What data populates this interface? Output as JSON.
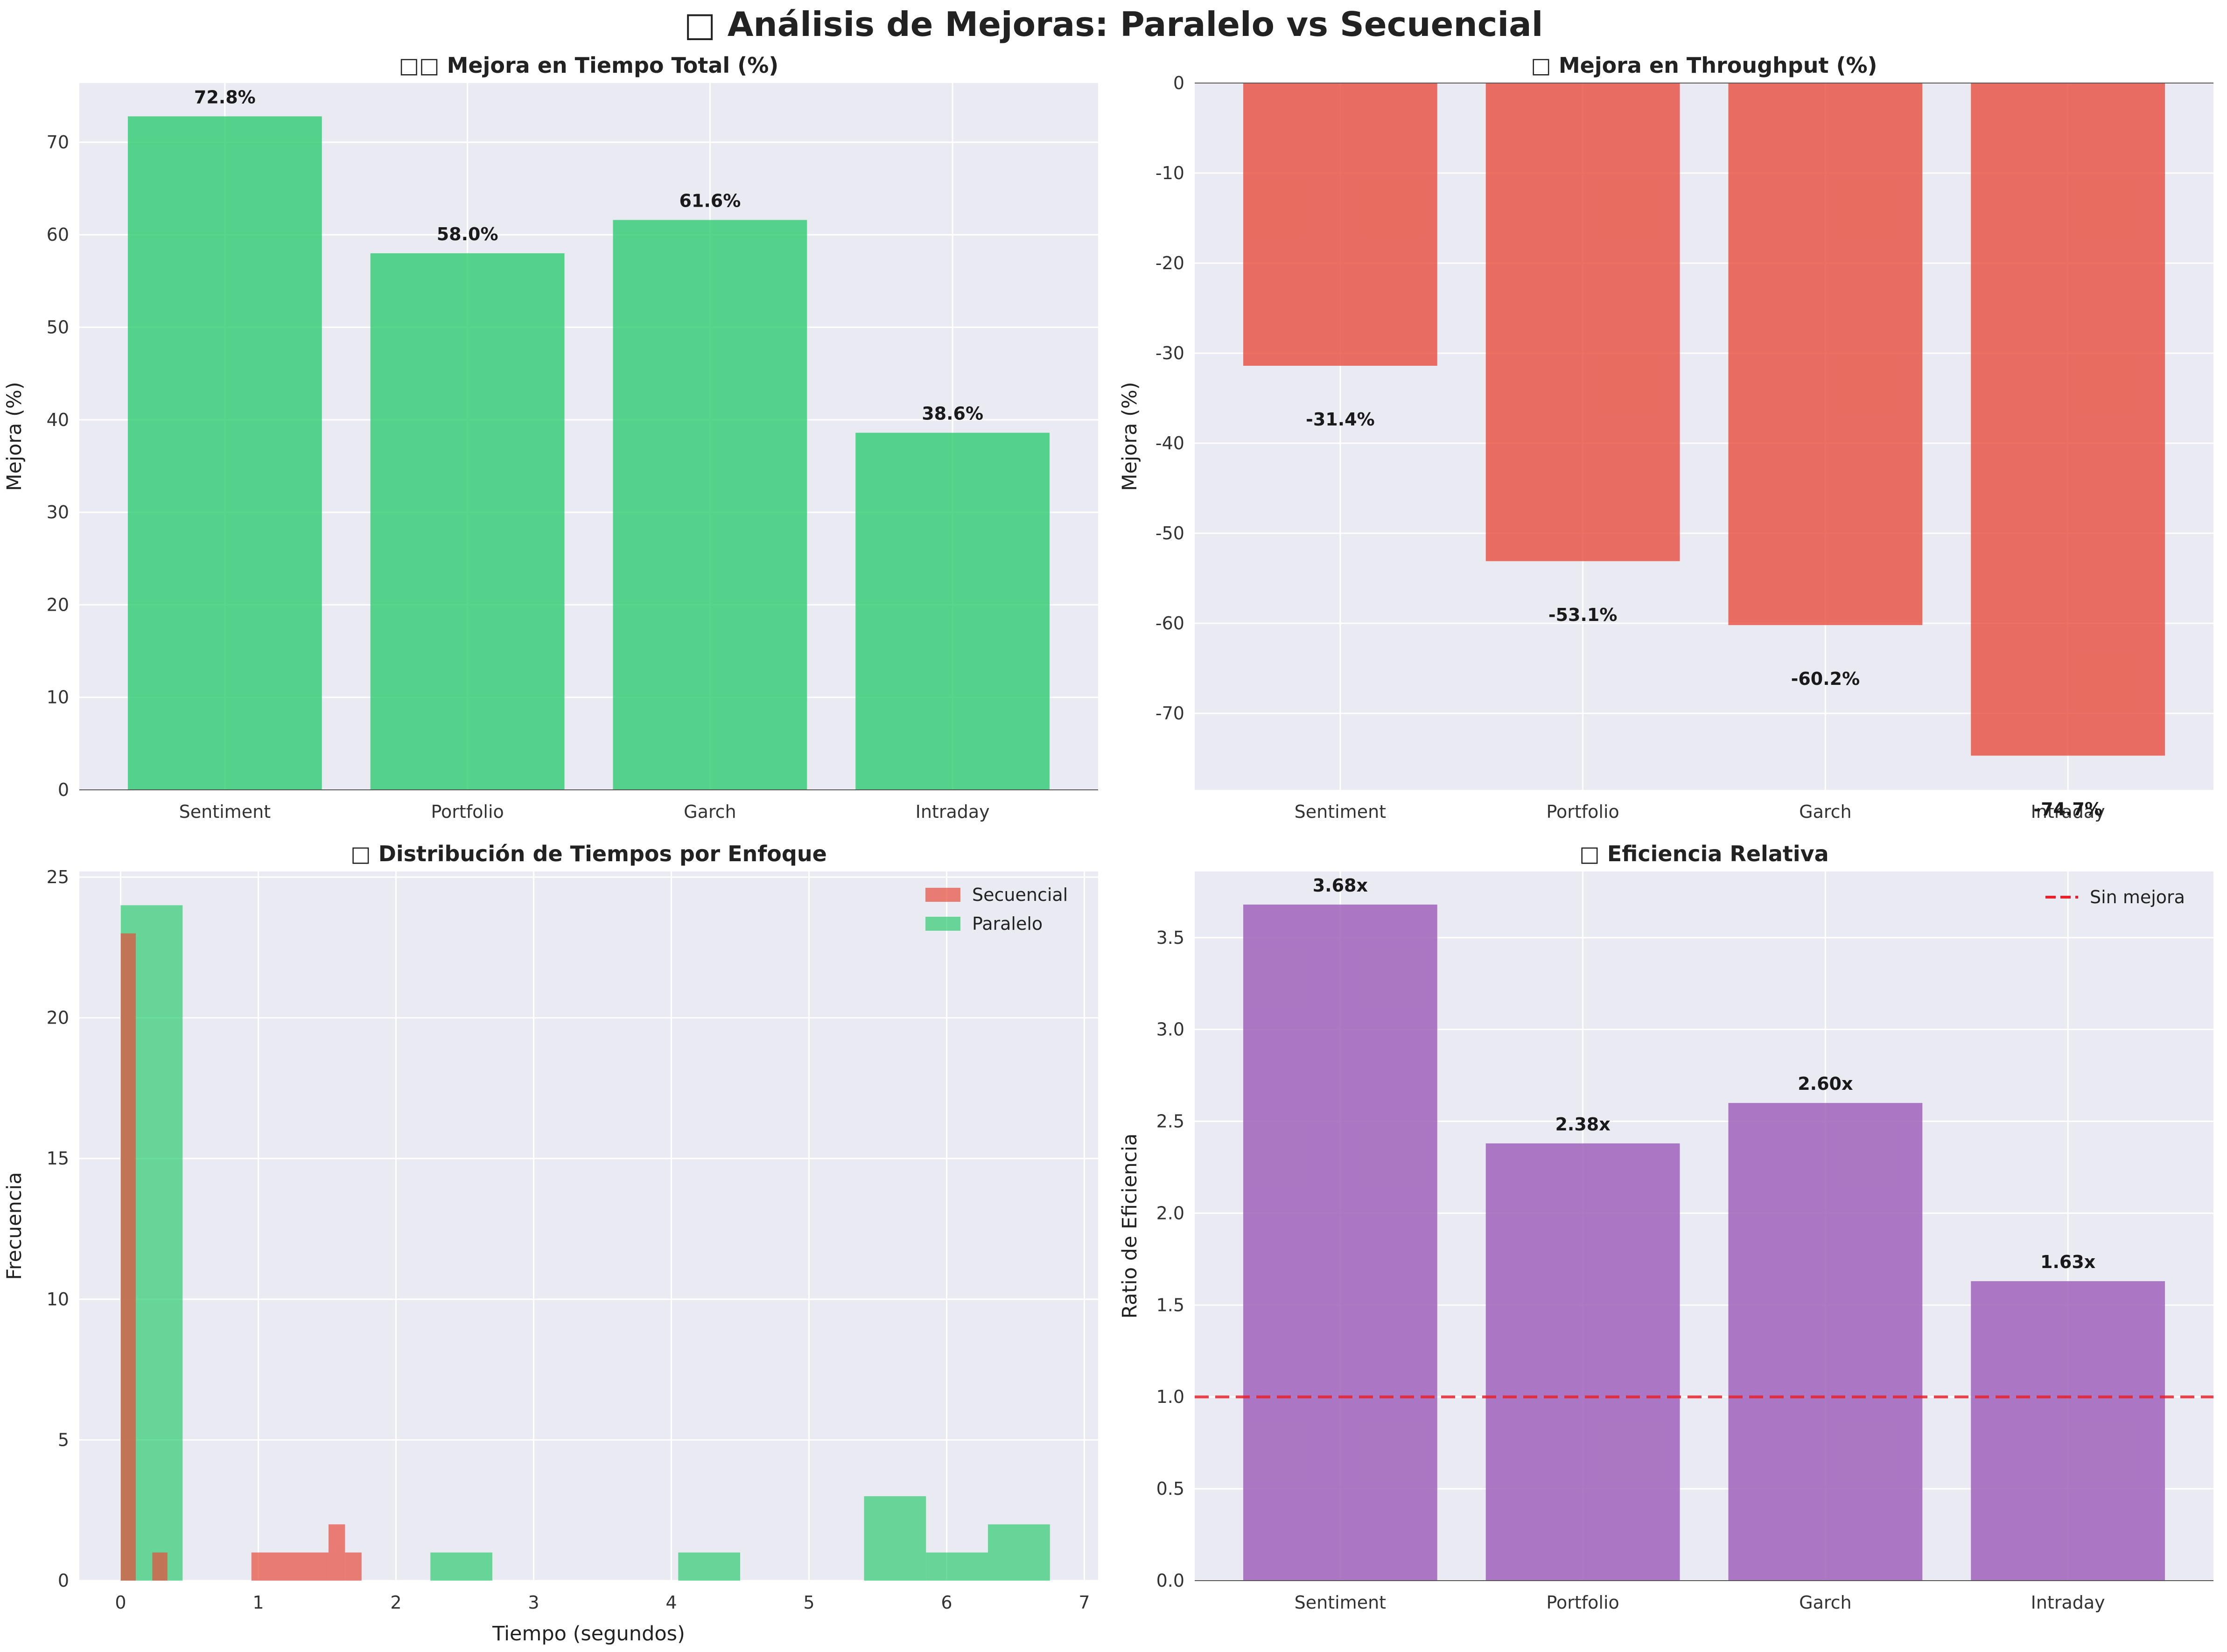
{
  "figure": {
    "title": "□ Análisis de Mejoras: Paralelo vs Secuencial"
  },
  "colors": {
    "background": "#EAEAF2",
    "grid": "#ffffff",
    "green": "#2ECC71",
    "red": "#E74C3C",
    "purple": "#9B59B6",
    "dashed": "#E8202A"
  },
  "chart_data": [
    {
      "type": "bar",
      "title": "□□ Mejora en Tiempo Total (%)",
      "xlabel": "",
      "ylabel": "Mejora (%)",
      "categories": [
        "Sentiment",
        "Portfolio",
        "Garch",
        "Intraday"
      ],
      "values": [
        72.8,
        58.0,
        61.6,
        38.6
      ],
      "data_labels": [
        "72.8%",
        "58.0%",
        "61.6%",
        "38.6%"
      ],
      "ylim": [
        0,
        76.4
      ],
      "yticks": [
        0,
        10,
        20,
        30,
        40,
        50,
        60,
        70
      ],
      "color": "#2ECC71",
      "grid": true
    },
    {
      "type": "bar",
      "title": "□ Mejora en Throughput (%)",
      "xlabel": "",
      "ylabel": "Mejora (%)",
      "categories": [
        "Sentiment",
        "Portfolio",
        "Garch",
        "Intraday"
      ],
      "values": [
        -31.4,
        -53.1,
        -60.2,
        -74.7
      ],
      "data_labels": [
        "-31.4%",
        "-53.1%",
        "-60.2%",
        "-74.7%"
      ],
      "ylim": [
        -78.5,
        0
      ],
      "yticks": [
        0,
        -10,
        -20,
        -30,
        -40,
        -50,
        -60,
        -70
      ],
      "color": "#E74C3C",
      "grid": true
    },
    {
      "type": "histogram",
      "title": "□ Distribución de Tiempos por Enfoque",
      "xlabel": "Tiempo (segundos)",
      "ylabel": "Frecuencia",
      "xlim": [
        -0.3,
        7.1
      ],
      "ylim": [
        0,
        25.2
      ],
      "xticks": [
        0,
        1,
        2,
        3,
        4,
        5,
        6,
        7
      ],
      "yticks": [
        0,
        5,
        10,
        15,
        20,
        25
      ],
      "legend_position": "top-right",
      "series": [
        {
          "name": "Secuencial",
          "color": "#E74C3C",
          "bins": [
            {
              "x0": 0.0,
              "x1": 0.11,
              "count": 23
            },
            {
              "x0": 0.23,
              "x1": 0.34,
              "count": 1
            },
            {
              "x0": 0.95,
              "x1": 1.51,
              "count": 1
            },
            {
              "x0": 1.51,
              "x1": 1.63,
              "count": 2
            },
            {
              "x0": 1.63,
              "x1": 1.75,
              "count": 1
            }
          ]
        },
        {
          "name": "Paralelo",
          "color": "#2ECC71",
          "bins": [
            {
              "x0": 0.0,
              "x1": 0.45,
              "count": 24
            },
            {
              "x0": 2.25,
              "x1": 2.7,
              "count": 1
            },
            {
              "x0": 4.05,
              "x1": 4.5,
              "count": 1
            },
            {
              "x0": 5.4,
              "x1": 5.85,
              "count": 3
            },
            {
              "x0": 5.85,
              "x1": 6.3,
              "count": 1
            },
            {
              "x0": 6.3,
              "x1": 6.75,
              "count": 2
            }
          ]
        }
      ],
      "grid": true
    },
    {
      "type": "bar",
      "title": "□ Eficiencia Relativa",
      "xlabel": "",
      "ylabel": "Ratio de Eficiencia",
      "categories": [
        "Sentiment",
        "Portfolio",
        "Garch",
        "Intraday"
      ],
      "values": [
        3.68,
        2.38,
        2.6,
        1.63
      ],
      "data_labels": [
        "3.68x",
        "2.38x",
        "2.60x",
        "1.63x"
      ],
      "ylim": [
        0,
        3.86
      ],
      "yticks": [
        0.0,
        0.5,
        1.0,
        1.5,
        2.0,
        2.5,
        3.0,
        3.5
      ],
      "color": "#9B59B6",
      "reference_line": {
        "y": 1.0,
        "label": "Sin mejora",
        "style": "dashed",
        "color": "#E8202A"
      },
      "legend_position": "top-right",
      "grid": true
    }
  ]
}
